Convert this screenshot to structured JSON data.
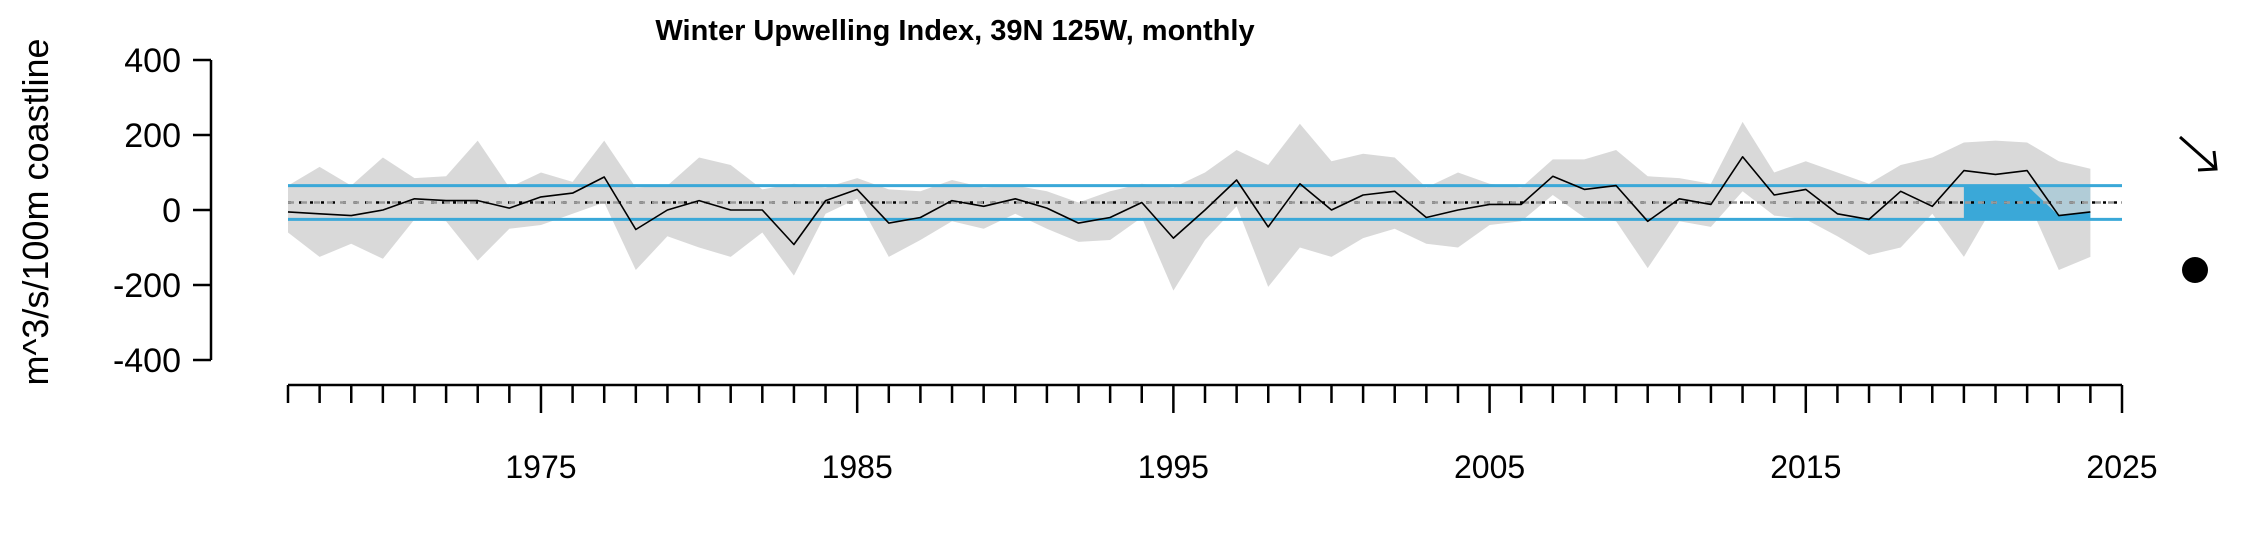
{
  "chart_data": {
    "type": "line",
    "title": "Winter Upwelling Index, 39N 125W, monthly",
    "ylabel": "m^3/s/100m coastline",
    "xlabel": "",
    "xlim": [
      1967,
      2025
    ],
    "ylim": [
      -400,
      400
    ],
    "yticks": [
      400,
      200,
      0,
      -200,
      -400
    ],
    "xtick_labels": [
      1975,
      1985,
      1995,
      2005,
      2015,
      2025
    ],
    "minor_tick_step": 1,
    "mean": 20,
    "upper_sd": 65,
    "lower_sd": -25,
    "highlight_range": [
      2020,
      2024
    ],
    "colors": {
      "line": "#000000",
      "band": "#d9d9d9",
      "sd_line": "#3aa8d8",
      "recent_fill": "#3aa8d8",
      "recent_shade": "#a9c9d6",
      "mean_line": "#999999"
    },
    "trend_symbol": "arrow-down-right-icon",
    "mean_symbol": "filled-circle-icon",
    "series": [
      {
        "x": [
          1967,
          1968,
          1969,
          1970,
          1971,
          1972,
          1973,
          1974,
          1975,
          1976,
          1977,
          1978,
          1979,
          1980,
          1981,
          1982,
          1983,
          1984,
          1985,
          1986,
          1987,
          1988,
          1989,
          1990,
          1991,
          1992,
          1993,
          1994,
          1995,
          1996,
          1997,
          1998,
          1999,
          2000,
          2001,
          2002,
          2003,
          2004,
          2005,
          2006,
          2007,
          2008,
          2009,
          2010,
          2011,
          2012,
          2013,
          2014,
          2015,
          2016,
          2017,
          2018,
          2019,
          2020,
          2021,
          2022,
          2023,
          2024
        ],
        "values": [
          -5,
          -10,
          -15,
          0,
          30,
          25,
          25,
          5,
          35,
          45,
          88,
          -52,
          0,
          25,
          0,
          0,
          -92,
          25,
          55,
          -35,
          -20,
          25,
          10,
          30,
          5,
          -35,
          -20,
          20,
          -75,
          0,
          80,
          -45,
          70,
          0,
          40,
          50,
          -20,
          0,
          15,
          15,
          90,
          55,
          65,
          -30,
          30,
          15,
          142,
          40,
          55,
          -10,
          -25,
          50,
          10,
          105,
          95,
          105,
          -15,
          -5
        ]
      }
    ],
    "band": {
      "upper": [
        65,
        115,
        65,
        140,
        85,
        90,
        185,
        60,
        100,
        75,
        185,
        60,
        65,
        140,
        120,
        55,
        70,
        60,
        85,
        55,
        50,
        80,
        60,
        65,
        50,
        20,
        50,
        70,
        60,
        100,
        160,
        120,
        230,
        130,
        150,
        140,
        60,
        100,
        70,
        60,
        135,
        135,
        160,
        90,
        85,
        70,
        235,
        100,
        130,
        100,
        70,
        120,
        140,
        180,
        185,
        180,
        130,
        110
      ],
      "lower": [
        -60,
        -125,
        -90,
        -130,
        -25,
        -30,
        -135,
        -50,
        -40,
        -10,
        20,
        -160,
        -70,
        -100,
        -125,
        -60,
        -175,
        -10,
        30,
        -125,
        -80,
        -30,
        -50,
        -10,
        -50,
        -85,
        -80,
        -20,
        -215,
        -80,
        10,
        -205,
        -100,
        -125,
        -75,
        -50,
        -90,
        -100,
        -40,
        -30,
        40,
        -20,
        -30,
        -155,
        -30,
        -45,
        50,
        -15,
        -25,
        -70,
        -120,
        -100,
        -10,
        -125,
        20,
        30,
        -160,
        -125
      ]
    }
  }
}
